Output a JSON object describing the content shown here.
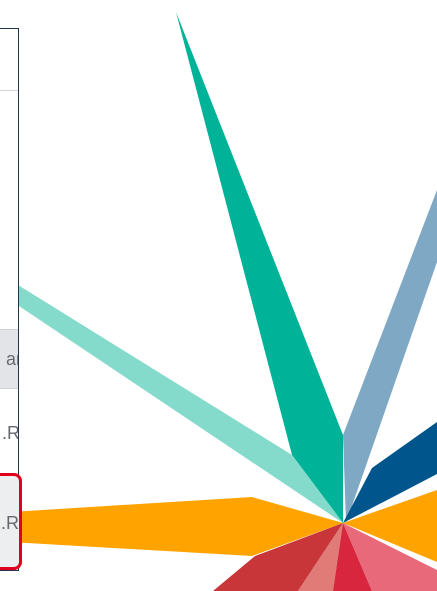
{
  "panel": {
    "items": [
      "ar",
      ".R",
      ".R"
    ]
  }
}
